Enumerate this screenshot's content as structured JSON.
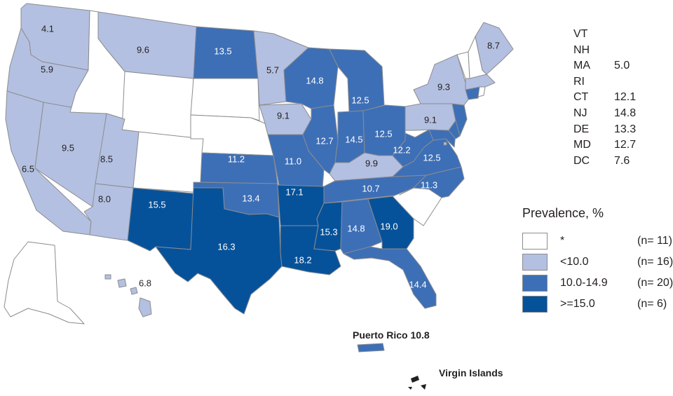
{
  "map": {
    "colors": {
      "none": "#ffffff",
      "low": "#b4c0e1",
      "mid": "#3d6fb6",
      "high": "#06529a",
      "border": "#8a8c8f"
    },
    "states": [
      {
        "id": "WA",
        "value": "4.1",
        "cat": "low"
      },
      {
        "id": "OR",
        "value": "5.9",
        "cat": "low"
      },
      {
        "id": "CA",
        "value": "6.5",
        "cat": "low"
      },
      {
        "id": "NV",
        "value": "9.5",
        "cat": "low"
      },
      {
        "id": "ID",
        "value": "",
        "cat": "none"
      },
      {
        "id": "MT",
        "value": "9.6",
        "cat": "low"
      },
      {
        "id": "WY",
        "value": "",
        "cat": "none"
      },
      {
        "id": "UT",
        "value": "8.5",
        "cat": "low"
      },
      {
        "id": "CO",
        "value": "",
        "cat": "none"
      },
      {
        "id": "AZ",
        "value": "8.0",
        "cat": "low"
      },
      {
        "id": "NM",
        "value": "15.5",
        "cat": "high"
      },
      {
        "id": "ND",
        "value": "13.5",
        "cat": "mid"
      },
      {
        "id": "SD",
        "value": "",
        "cat": "none"
      },
      {
        "id": "NE",
        "value": "",
        "cat": "none"
      },
      {
        "id": "KS",
        "value": "11.2",
        "cat": "mid"
      },
      {
        "id": "OK",
        "value": "13.4",
        "cat": "mid"
      },
      {
        "id": "TX",
        "value": "16.3",
        "cat": "high"
      },
      {
        "id": "MN",
        "value": "5.7",
        "cat": "low"
      },
      {
        "id": "IA",
        "value": "9.1",
        "cat": "low"
      },
      {
        "id": "MO",
        "value": "11.0",
        "cat": "mid"
      },
      {
        "id": "AR",
        "value": "17.1",
        "cat": "high"
      },
      {
        "id": "LA",
        "value": "18.2",
        "cat": "high"
      },
      {
        "id": "WI",
        "value": "14.8",
        "cat": "mid"
      },
      {
        "id": "IL",
        "value": "12.7",
        "cat": "mid"
      },
      {
        "id": "MI",
        "value": "12.5",
        "cat": "mid"
      },
      {
        "id": "IN",
        "value": "14.5",
        "cat": "mid"
      },
      {
        "id": "OH",
        "value": "12.5",
        "cat": "mid"
      },
      {
        "id": "KY",
        "value": "9.9",
        "cat": "low"
      },
      {
        "id": "TN",
        "value": "10.7",
        "cat": "mid"
      },
      {
        "id": "MS",
        "value": "15.3",
        "cat": "high"
      },
      {
        "id": "AL",
        "value": "14.8",
        "cat": "mid"
      },
      {
        "id": "GA",
        "value": "19.0",
        "cat": "high"
      },
      {
        "id": "FL",
        "value": "14.4",
        "cat": "mid"
      },
      {
        "id": "SC",
        "value": "",
        "cat": "none"
      },
      {
        "id": "NC",
        "value": "11.3",
        "cat": "mid"
      },
      {
        "id": "VA",
        "value": "12.5",
        "cat": "mid"
      },
      {
        "id": "WV",
        "value": "12.2",
        "cat": "mid"
      },
      {
        "id": "PA",
        "value": "9.1",
        "cat": "low"
      },
      {
        "id": "NY",
        "value": "9.3",
        "cat": "low"
      },
      {
        "id": "ME",
        "value": "8.7",
        "cat": "low"
      },
      {
        "id": "VT",
        "value": "",
        "cat": "none"
      },
      {
        "id": "NH",
        "value": "",
        "cat": "none"
      },
      {
        "id": "MA",
        "value": "5.0",
        "cat": "low"
      },
      {
        "id": "RI",
        "value": "",
        "cat": "none"
      },
      {
        "id": "CT",
        "value": "12.1",
        "cat": "mid"
      },
      {
        "id": "NJ",
        "value": "14.8",
        "cat": "mid"
      },
      {
        "id": "DE",
        "value": "13.3",
        "cat": "mid"
      },
      {
        "id": "MD",
        "value": "12.7",
        "cat": "mid"
      },
      {
        "id": "DC",
        "value": "7.6",
        "cat": "low"
      },
      {
        "id": "AK",
        "value": "",
        "cat": "none"
      },
      {
        "id": "HI",
        "value": "6.8",
        "cat": "low"
      }
    ],
    "northeast_table": [
      {
        "abbr": "VT",
        "value": ""
      },
      {
        "abbr": "NH",
        "value": ""
      },
      {
        "abbr": "MA",
        "value": "5.0"
      },
      {
        "abbr": "RI",
        "value": ""
      },
      {
        "abbr": "CT",
        "value": "12.1"
      },
      {
        "abbr": "NJ",
        "value": "14.8"
      },
      {
        "abbr": "DE",
        "value": "13.3"
      },
      {
        "abbr": "MD",
        "value": "12.7"
      },
      {
        "abbr": "DC",
        "value": "7.6"
      }
    ],
    "territories": {
      "puerto_rico": "Puerto Rico 10.8",
      "virgin_islands": "Virgin Islands"
    }
  },
  "legend": {
    "title": "Prevalence, %",
    "items": [
      {
        "label": "*",
        "count": "(n= 11)",
        "cat": "none"
      },
      {
        "label": "<10.0",
        "count": "(n= 16)",
        "cat": "low"
      },
      {
        "label": "10.0-14.9",
        "count": "(n= 20)",
        "cat": "mid"
      },
      {
        "label": ">=15.0",
        "count": "(n=  6)",
        "cat": "high"
      }
    ]
  }
}
